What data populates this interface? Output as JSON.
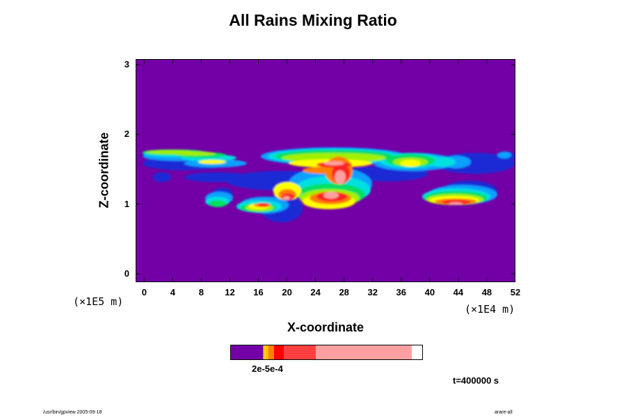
{
  "chart_data": {
    "type": "heatmap",
    "title": "All Rains Mixing Ratio",
    "xlabel": "X-coordinate",
    "ylabel": "Z-coordinate",
    "x_multiplier": "(×1E4 m)",
    "y_multiplier": "(×1E5 m)",
    "x_ticks": [
      "0",
      "4",
      "8",
      "12",
      "16",
      "20",
      "24",
      "28",
      "32",
      "36",
      "40",
      "44",
      "48",
      "52"
    ],
    "y_ticks": [
      "0",
      "1",
      "2",
      "3"
    ],
    "xlim": [
      -1.2,
      52
    ],
    "ylim": [
      -0.12,
      3.08
    ],
    "colorbar_label": "2e-5e-4",
    "colorbar_colors": [
      "#7300a6",
      "#e8a000",
      "#ffc000",
      "#ff8000",
      "#ff0000",
      "#ff4040",
      "#ffa0a0"
    ],
    "background_color": "#7300a6",
    "time_label": "t=400000 s"
  },
  "footer": {
    "left": "/usr/bin/gpview 2005-09-18",
    "right": "arare-all"
  }
}
